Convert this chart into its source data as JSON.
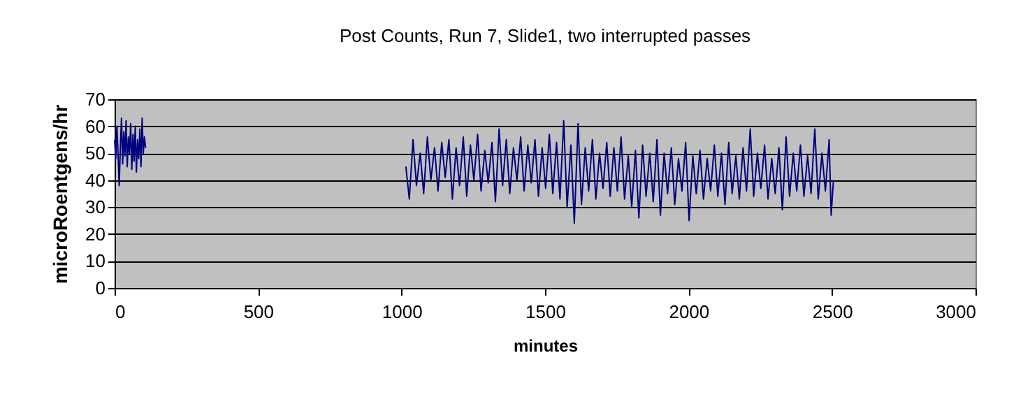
{
  "chart_data": {
    "type": "line",
    "title": "Post Counts, Run 7, Slide1, two interrupted passes",
    "xlabel": "minutes",
    "ylabel": "microRoentgens/hr",
    "xlim": [
      0,
      3000
    ],
    "xticks": [
      0,
      500,
      1000,
      1500,
      2000,
      2500,
      3000
    ],
    "ylim": [
      0,
      70
    ],
    "yticks": [
      0,
      10,
      20,
      30,
      40,
      50,
      60,
      70
    ],
    "grid": "y",
    "series": [
      {
        "color": "#000080",
        "x": [
          0,
          4,
          8,
          12,
          16,
          20,
          24,
          28,
          32,
          36,
          40,
          44,
          48,
          52,
          56,
          60,
          64,
          68,
          72,
          76,
          80,
          84,
          88,
          92,
          96,
          100,
          104,
          108,
          560,
          1015,
          1027,
          1040,
          1052,
          1065,
          1077,
          1090,
          1102,
          1115,
          1127,
          1140,
          1152,
          1165,
          1177,
          1190,
          1202,
          1215,
          1227,
          1240,
          1252,
          1265,
          1277,
          1290,
          1302,
          1315,
          1327,
          1340,
          1352,
          1365,
          1377,
          1390,
          1402,
          1415,
          1427,
          1440,
          1452,
          1465,
          1477,
          1490,
          1502,
          1515,
          1527,
          1540,
          1552,
          1565,
          1577,
          1590,
          1602,
          1615,
          1627,
          1640,
          1652,
          1665,
          1677,
          1690,
          1702,
          1715,
          1727,
          1740,
          1752,
          1765,
          1777,
          1790,
          1802,
          1815,
          1827,
          1840,
          1852,
          1865,
          1877,
          1890,
          1902,
          1915,
          1927,
          1940,
          1952,
          1965,
          1977,
          1990,
          2002,
          2015,
          2027,
          2040,
          2052,
          2065,
          2077,
          2090,
          2102,
          2115,
          2127,
          2140,
          2152,
          2165,
          2177,
          2190,
          2202,
          2215,
          2227,
          2240,
          2252,
          2265,
          2277,
          2290,
          2302,
          2315,
          2327,
          2340,
          2352,
          2365,
          2377,
          2390,
          2402,
          2415,
          2427,
          2440,
          2452,
          2465,
          2477,
          2490,
          2497,
          2505
        ],
        "values": [
          55,
          48,
          60,
          50,
          38,
          52,
          63,
          46,
          58,
          49,
          62,
          45,
          56,
          50,
          61,
          44,
          57,
          47,
          60,
          43,
          55,
          48,
          59,
          45,
          63,
          50,
          56,
          52,
          null,
          45,
          33,
          55,
          38,
          50,
          35,
          56,
          40,
          52,
          36,
          54,
          41,
          55,
          33,
          52,
          38,
          56,
          34,
          53,
          40,
          57,
          36,
          51,
          39,
          54,
          32,
          59,
          38,
          55,
          35,
          52,
          40,
          56,
          36,
          53,
          39,
          55,
          34,
          52,
          37,
          57,
          35,
          54,
          33,
          62,
          30,
          53,
          24,
          61,
          31,
          52,
          36,
          55,
          33,
          50,
          37,
          54,
          34,
          52,
          36,
          56,
          33,
          49,
          30,
          51,
          26,
          53,
          34,
          50,
          32,
          55,
          27,
          50,
          35,
          52,
          31,
          48,
          36,
          54,
          25,
          49,
          35,
          51,
          33,
          48,
          36,
          53,
          34,
          50,
          31,
          54,
          35,
          49,
          33,
          52,
          36,
          59,
          34,
          50,
          37,
          53,
          33,
          48,
          35,
          52,
          29,
          56,
          34,
          50,
          36,
          53,
          34,
          49,
          35,
          59,
          33,
          50,
          36,
          55,
          27,
          40
        ]
      }
    ]
  }
}
